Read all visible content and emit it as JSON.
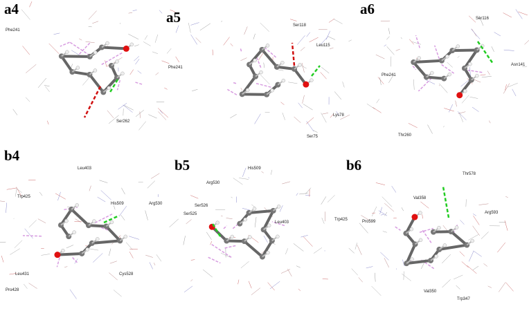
{
  "panels": [
    {
      "label": "a4",
      "residues": [
        "Phe241",
        "Ser262"
      ]
    },
    {
      "label": "a5",
      "residues": [
        "Ser118",
        "Leu115",
        "Phe241",
        "Lys78",
        "Ser75"
      ]
    },
    {
      "label": "a6",
      "residues": [
        "Ser116",
        "Phe241",
        "Asn141",
        "Thr260"
      ]
    },
    {
      "label": "b4",
      "residues": [
        "Leu403",
        "Trp425",
        "His509",
        "Arg530",
        "Cys528",
        "Leu431",
        "Pro428"
      ]
    },
    {
      "label": "b5",
      "residues": [
        "His509",
        "Arg530",
        "Ser526",
        "Ser525",
        "Leu403",
        "Trp425"
      ]
    },
    {
      "label": "b6",
      "residues": [
        "Thr578",
        "Val358",
        "Arg593",
        "Pro599",
        "Val350",
        "Trp347"
      ]
    }
  ]
}
